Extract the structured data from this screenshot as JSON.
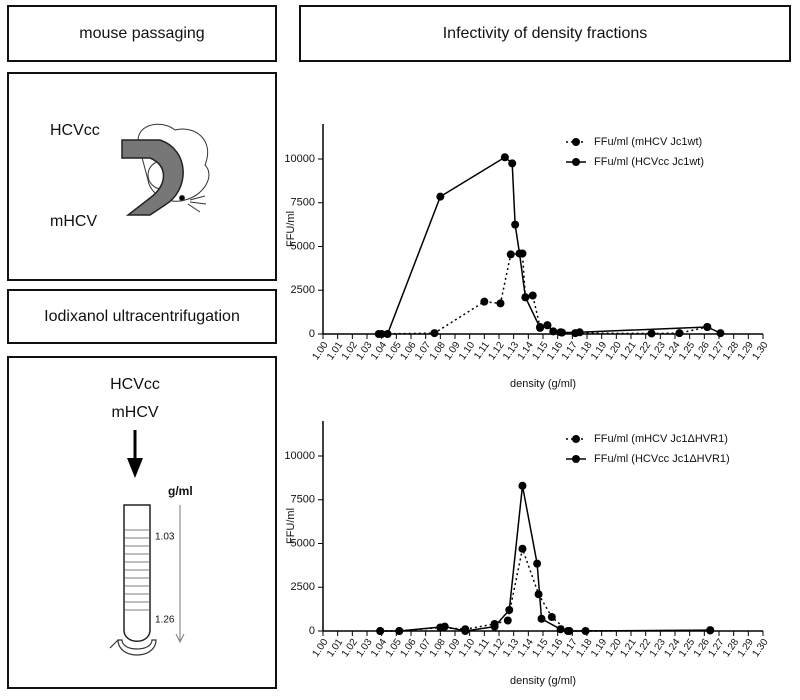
{
  "panels": {
    "mouse_title": "mouse passaging",
    "mouse_labels": [
      "HCVcc",
      "mHCV"
    ],
    "ultra_title": "Iodixanol ultracentrifugation",
    "tube_labels": [
      "HCVcc",
      "mHCV"
    ],
    "tube_unit": "g/ml",
    "tube_top": "1.03",
    "tube_bottom": "1.26",
    "chart_title": "Infectivity of density fractions"
  },
  "chart_data": [
    {
      "type": "line",
      "xlabel": "density (g/ml)",
      "ylabel": "FFU/ml",
      "xlim": [
        1.0,
        1.3
      ],
      "ylim": [
        0,
        12000
      ],
      "xticks": [
        {
          "value": 1.0,
          "label": "1.00"
        },
        1.01,
        1.02,
        1.03,
        1.04,
        1.05,
        1.06,
        1.07,
        1.08,
        1.09,
        {
          "value": 1.1,
          "label": "1.10"
        },
        1.11,
        1.12,
        1.13,
        1.14,
        1.15,
        1.16,
        1.17,
        1.18,
        1.19,
        {
          "value": 1.2,
          "label": "1.20"
        },
        1.21,
        1.22,
        1.23,
        1.24,
        1.25,
        1.26,
        1.27,
        1.28,
        1.29,
        {
          "value": 1.3,
          "label": "1.30"
        }
      ],
      "yticks": [
        0,
        2500,
        5000,
        7500,
        10000
      ],
      "legend": "upper right",
      "series": [
        {
          "name": "FFu/ml (mHCV Jc1wt)",
          "color": "#000000",
          "style": "dotted",
          "x": [
            1.038,
            1.076,
            1.11,
            1.121,
            1.128,
            1.136,
            1.138,
            1.143,
            1.148,
            1.153,
            1.162,
            1.172,
            1.224,
            1.243,
            1.262
          ],
          "values": [
            0,
            50,
            1850,
            1750,
            4550,
            4600,
            2100,
            2200,
            400,
            500,
            100,
            50,
            30,
            50,
            400
          ]
        },
        {
          "name": "FFu/ml (HCVcc Jc1wt)",
          "color": "#000000",
          "style": "solid",
          "x": [
            1.04,
            1.044,
            1.08,
            1.124,
            1.129,
            1.131,
            1.134,
            1.138,
            1.148,
            1.153,
            1.157,
            1.163,
            1.175,
            1.262,
            1.271
          ],
          "values": [
            0,
            0,
            7850,
            10100,
            9750,
            6250,
            4600,
            2100,
            350,
            500,
            150,
            80,
            100,
            400,
            50
          ]
        }
      ]
    },
    {
      "type": "line",
      "xlabel": "density (g/ml)",
      "ylabel": "FFU/ml",
      "xlim": [
        1.0,
        1.3
      ],
      "ylim": [
        0,
        12000
      ],
      "xticks": [
        {
          "value": 1.0,
          "label": "1.00"
        },
        1.01,
        1.02,
        1.03,
        1.04,
        1.05,
        1.06,
        1.07,
        1.08,
        1.09,
        {
          "value": 1.1,
          "label": "1.10"
        },
        1.11,
        1.12,
        1.13,
        1.14,
        1.15,
        1.16,
        1.17,
        1.18,
        1.19,
        {
          "value": 1.2,
          "label": "1.20"
        },
        1.21,
        1.22,
        1.23,
        1.24,
        1.25,
        1.26,
        1.27,
        1.28,
        1.29,
        {
          "value": 1.3,
          "label": "1.30"
        }
      ],
      "yticks": [
        0,
        2500,
        5000,
        7500,
        10000
      ],
      "legend": "upper right",
      "series": [
        {
          "name": "FFu/ml (mHCV Jc1ΔHVR1)",
          "color": "#000000",
          "style": "dotted",
          "x": [
            1.039,
            1.052,
            1.08,
            1.097,
            1.117,
            1.126,
            1.136,
            1.147,
            1.156,
            1.167,
            1.179,
            1.264
          ],
          "values": [
            0,
            0,
            200,
            100,
            400,
            600,
            4700,
            2100,
            800,
            0,
            0,
            30
          ]
        },
        {
          "name": "FFu/ml (HCVcc Jc1ΔHVR1)",
          "color": "#000000",
          "style": "solid",
          "x": [
            1.039,
            1.052,
            1.083,
            1.097,
            1.117,
            1.127,
            1.136,
            1.146,
            1.149,
            1.162,
            1.168,
            1.264
          ],
          "values": [
            0,
            0,
            250,
            0,
            250,
            1200,
            8300,
            3850,
            700,
            100,
            0,
            50
          ]
        }
      ]
    }
  ]
}
